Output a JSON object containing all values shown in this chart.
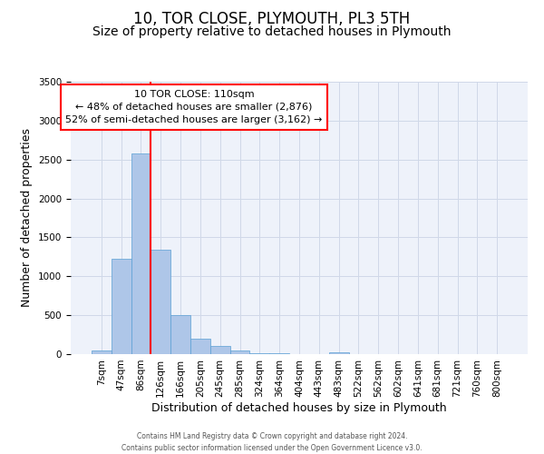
{
  "title": "10, TOR CLOSE, PLYMOUTH, PL3 5TH",
  "subtitle": "Size of property relative to detached houses in Plymouth",
  "xlabel": "Distribution of detached houses by size in Plymouth",
  "ylabel": "Number of detached properties",
  "bar_labels": [
    "7sqm",
    "47sqm",
    "86sqm",
    "126sqm",
    "166sqm",
    "205sqm",
    "245sqm",
    "285sqm",
    "324sqm",
    "364sqm",
    "404sqm",
    "443sqm",
    "483sqm",
    "522sqm",
    "562sqm",
    "602sqm",
    "641sqm",
    "681sqm",
    "721sqm",
    "760sqm",
    "800sqm"
  ],
  "bar_values": [
    50,
    1230,
    2580,
    1340,
    500,
    195,
    110,
    50,
    10,
    10,
    0,
    0,
    25,
    0,
    0,
    0,
    0,
    0,
    0,
    0,
    0
  ],
  "bar_color": "#aec6e8",
  "bar_edgecolor": "#5a9fd4",
  "vline_color": "red",
  "vline_pos": 2.5,
  "annotation_text": "10 TOR CLOSE: 110sqm\n← 48% of detached houses are smaller (2,876)\n52% of semi-detached houses are larger (3,162) →",
  "annotation_box_edgecolor": "red",
  "ylim": [
    0,
    3500
  ],
  "yticks": [
    0,
    500,
    1000,
    1500,
    2000,
    2500,
    3000,
    3500
  ],
  "grid_color": "#d0d8e8",
  "bg_color": "#eef2fa",
  "footer_line1": "Contains HM Land Registry data © Crown copyright and database right 2024.",
  "footer_line2": "Contains public sector information licensed under the Open Government Licence v3.0.",
  "title_fontsize": 12,
  "subtitle_fontsize": 10,
  "tick_fontsize": 7.5,
  "ylabel_fontsize": 9,
  "xlabel_fontsize": 9,
  "annotation_fontsize": 8,
  "figwidth": 6.0,
  "figheight": 5.0,
  "dpi": 100
}
